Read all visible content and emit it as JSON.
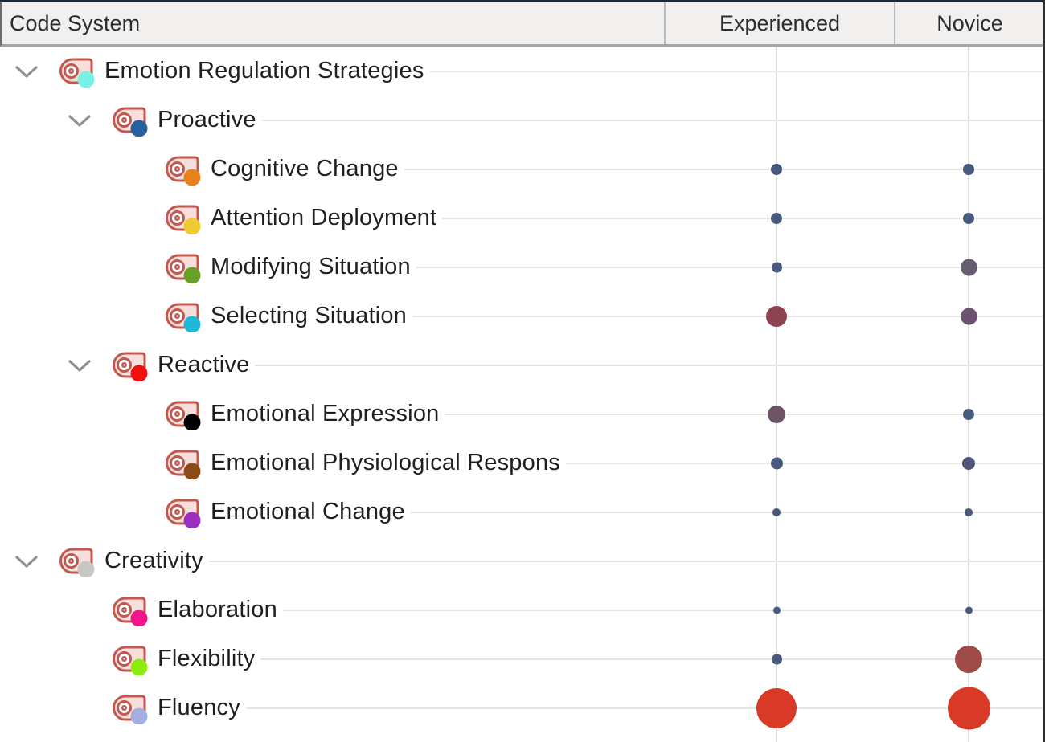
{
  "header": {
    "tree_column": "Code System",
    "doc_columns": [
      "Experienced",
      "Novice"
    ]
  },
  "palette": {
    "tag_stroke": "#c2584f",
    "tag_fill": "#f7dfdc",
    "dot_blue": "#47597d",
    "dot_purple": "#675d72",
    "dot_maroon": "#8e4350",
    "dot_brownred": "#9d4a49",
    "dot_red": "#d93a28",
    "grid_line": "#dcdcdc",
    "row_line": "#e5e5e5",
    "header_bg": "#f1f0ee",
    "chevron": "#8f8f8f"
  },
  "rows": [
    {
      "label": "Emotion Regulation Strategies",
      "level": 0,
      "expanded": true,
      "code_color": "#76f1e4",
      "cells": {
        "experienced": null,
        "novice": null
      }
    },
    {
      "label": "Proactive",
      "level": 1,
      "expanded": true,
      "code_color": "#27619f",
      "cells": {
        "experienced": null,
        "novice": null
      }
    },
    {
      "label": "Cognitive Change",
      "level": 2,
      "expanded": false,
      "code_color": "#e8821c",
      "cells": {
        "experienced": {
          "size": 14,
          "color": "#47597d"
        },
        "novice": {
          "size": 14,
          "color": "#47597d"
        }
      }
    },
    {
      "label": "Attention Deployment",
      "level": 2,
      "expanded": false,
      "code_color": "#eecb31",
      "cells": {
        "experienced": {
          "size": 14,
          "color": "#47597d"
        },
        "novice": {
          "size": 14,
          "color": "#47597d"
        }
      }
    },
    {
      "label": "Modifying Situation",
      "level": 2,
      "expanded": false,
      "code_color": "#68a028",
      "cells": {
        "experienced": {
          "size": 13,
          "color": "#47597d"
        },
        "novice": {
          "size": 21,
          "color": "#675d72"
        }
      }
    },
    {
      "label": "Selecting Situation",
      "level": 2,
      "expanded": false,
      "code_color": "#1fb9d8",
      "cells": {
        "experienced": {
          "size": 26,
          "color": "#8e4350"
        },
        "novice": {
          "size": 21,
          "color": "#6b5270"
        }
      }
    },
    {
      "label": "Reactive",
      "level": 1,
      "expanded": true,
      "code_color": "#f01010",
      "cells": {
        "experienced": null,
        "novice": null
      }
    },
    {
      "label": "Emotional Expression",
      "level": 2,
      "expanded": false,
      "code_color": "#000000",
      "cells": {
        "experienced": {
          "size": 22,
          "color": "#6f5366"
        },
        "novice": {
          "size": 14,
          "color": "#47597d"
        }
      }
    },
    {
      "label": "Emotional Physiological Respons",
      "level": 2,
      "expanded": false,
      "code_color": "#8c4b16",
      "cells": {
        "experienced": {
          "size": 15,
          "color": "#47597d"
        },
        "novice": {
          "size": 16,
          "color": "#50567a"
        }
      }
    },
    {
      "label": "Emotional Change",
      "level": 2,
      "expanded": false,
      "code_color": "#9b2fbe",
      "cells": {
        "experienced": {
          "size": 10,
          "color": "#47597d"
        },
        "novice": {
          "size": 10,
          "color": "#47597d"
        }
      }
    },
    {
      "label": "Creativity",
      "level": 0,
      "expanded": true,
      "code_color": "#c9c6c6",
      "cells": {
        "experienced": null,
        "novice": null
      }
    },
    {
      "label": "Elaboration",
      "level": 1,
      "expanded": false,
      "code_color": "#f0168c",
      "cells": {
        "experienced": {
          "size": 9,
          "color": "#47597d"
        },
        "novice": {
          "size": 9,
          "color": "#47597d"
        }
      }
    },
    {
      "label": "Flexibility",
      "level": 1,
      "expanded": false,
      "code_color": "#8cec0e",
      "cells": {
        "experienced": {
          "size": 13,
          "color": "#47597d"
        },
        "novice": {
          "size": 34,
          "color": "#9d4a49"
        }
      }
    },
    {
      "label": "Fluency",
      "level": 1,
      "expanded": false,
      "code_color": "#a6addf",
      "cells": {
        "experienced": {
          "size": 50,
          "color": "#d93a28"
        },
        "novice": {
          "size": 53,
          "color": "#d93a28"
        }
      }
    }
  ]
}
